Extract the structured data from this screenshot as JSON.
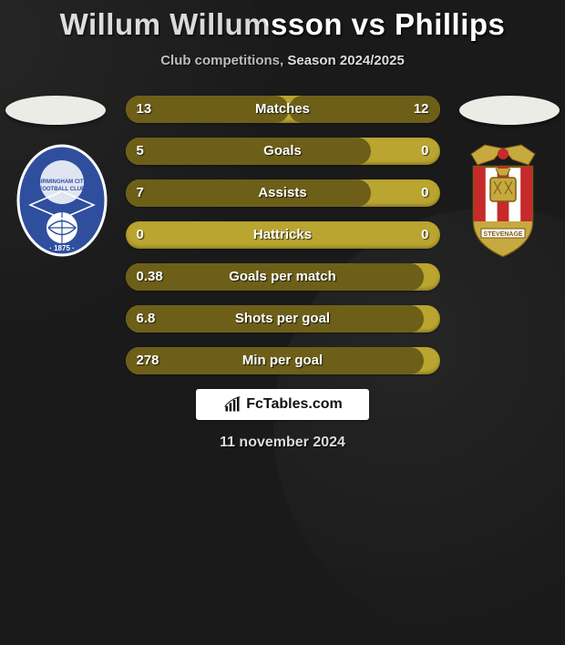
{
  "title": "Willum Willumsson vs Phillips",
  "subtitle": "Club competitions, Season 2024/2025",
  "date": "11 november 2024",
  "logo_text": "FcTables.com",
  "colors": {
    "bar_bg": "#b9a52f",
    "bar_fill": "#6d5f18",
    "page_bg": "#1a1a1a"
  },
  "bars": [
    {
      "label": "Matches",
      "left": "13",
      "right": "12",
      "left_pct": 52,
      "right_pct": 48
    },
    {
      "label": "Goals",
      "left": "5",
      "right": "0",
      "left_pct": 78,
      "right_pct": 0
    },
    {
      "label": "Assists",
      "left": "7",
      "right": "0",
      "left_pct": 78,
      "right_pct": 0
    },
    {
      "label": "Hattricks",
      "left": "0",
      "right": "0",
      "left_pct": 0,
      "right_pct": 0
    },
    {
      "label": "Goals per match",
      "left": "0.38",
      "right": "",
      "left_pct": 95,
      "right_pct": 0
    },
    {
      "label": "Shots per goal",
      "left": "6.8",
      "right": "",
      "left_pct": 95,
      "right_pct": 0
    },
    {
      "label": "Min per goal",
      "left": "278",
      "right": "",
      "left_pct": 95,
      "right_pct": 0
    }
  ],
  "crest_left": {
    "semantic": "birmingham-city-fc-crest",
    "primary": "#2f4f9e",
    "secondary": "#ffffff"
  },
  "crest_right": {
    "semantic": "stevenage-fc-crest",
    "primary": "#c6a93f",
    "stripe1": "#c72a2a",
    "stripe2": "#ffffff"
  }
}
